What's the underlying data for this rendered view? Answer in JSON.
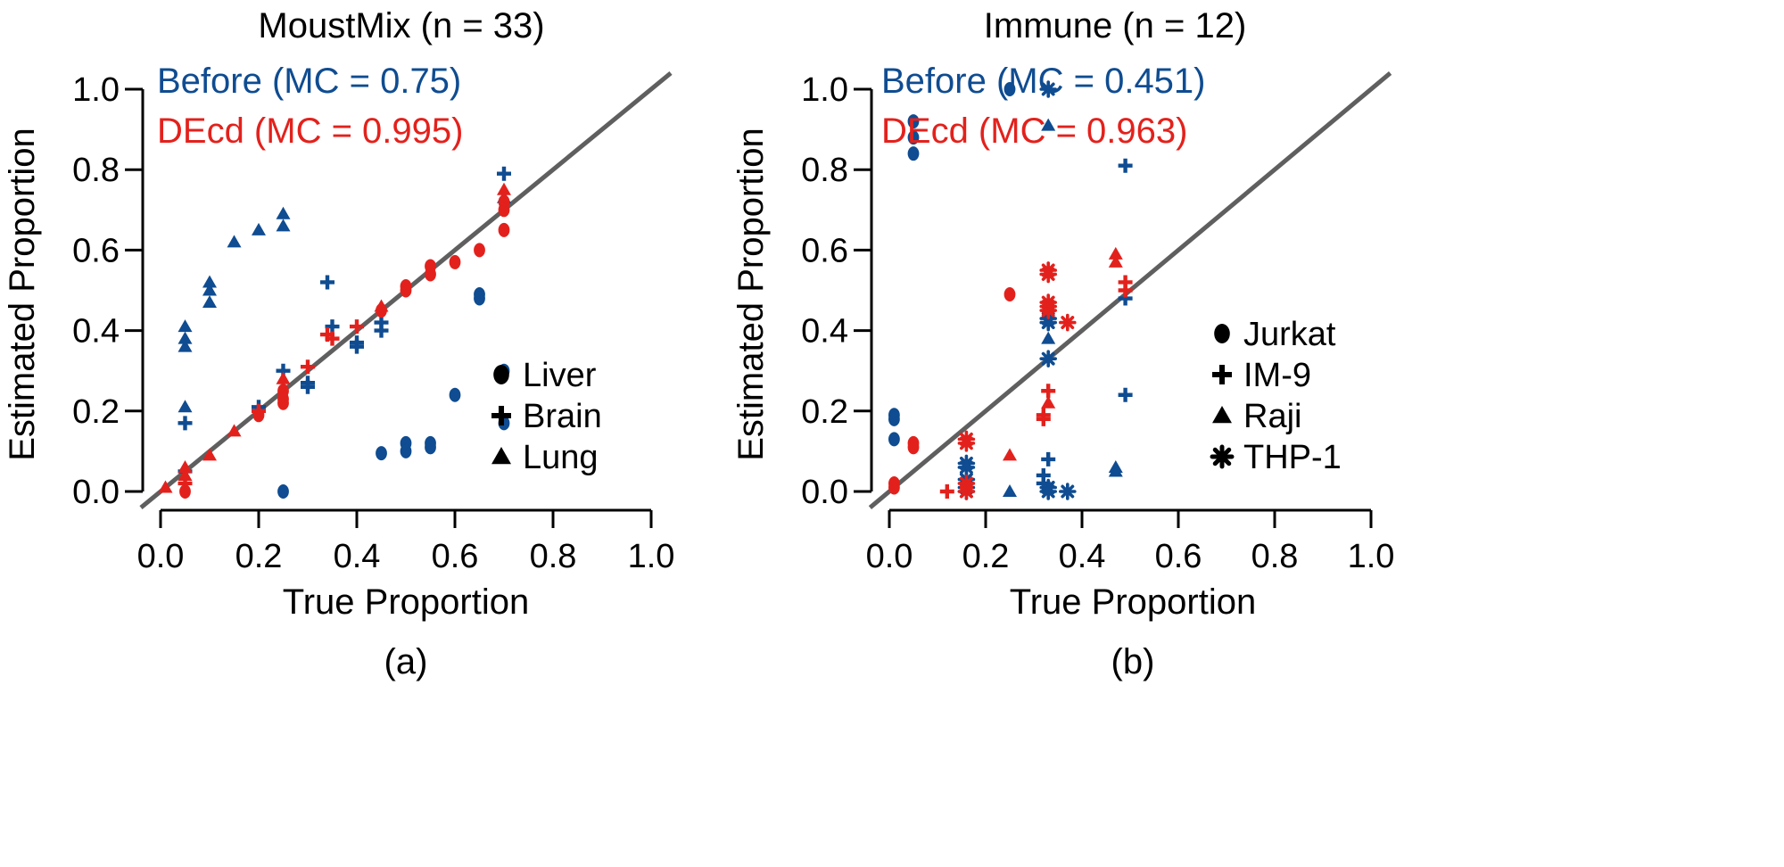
{
  "figure": {
    "colors": {
      "before": "#0f4c91",
      "decd": "#e3211c",
      "diagonal": "#5f5f5f",
      "axis": "#000000"
    },
    "series_labels": {
      "before": "Before",
      "decd": "DEcd"
    }
  },
  "chart_data": [
    {
      "type": "scatter",
      "panel_label": "(a)",
      "title": "MoustMix (n = 33)",
      "xlabel": "True Proportion",
      "ylabel": "Estimated Proportion",
      "xlim": [
        0.0,
        1.0
      ],
      "ylim": [
        0.0,
        1.0
      ],
      "xticks": [
        "0.0",
        "0.2",
        "0.4",
        "0.6",
        "0.8",
        "1.0"
      ],
      "yticks": [
        "0.0",
        "0.2",
        "0.4",
        "0.6",
        "0.8",
        "1.0"
      ],
      "grid": false,
      "reference_line": "y = x",
      "annotations": {
        "before": "Before (MC = 0.75)",
        "decd": "DEcd (MC = 0.995)"
      },
      "legend": {
        "placement": "bottom-right",
        "entries": [
          {
            "label": "Liver",
            "marker": "circle"
          },
          {
            "label": "Brain",
            "marker": "plus"
          },
          {
            "label": "Lung",
            "marker": "triangle"
          }
        ]
      },
      "series": [
        {
          "name": "Before",
          "color_key": "before",
          "points": [
            {
              "x": 0.05,
              "y": 0.41,
              "group": "Lung"
            },
            {
              "x": 0.05,
              "y": 0.38,
              "group": "Lung"
            },
            {
              "x": 0.05,
              "y": 0.36,
              "group": "Lung"
            },
            {
              "x": 0.05,
              "y": 0.21,
              "group": "Lung"
            },
            {
              "x": 0.05,
              "y": 0.17,
              "group": "Brain"
            },
            {
              "x": 0.05,
              "y": 0.05,
              "group": "Brain"
            },
            {
              "x": 0.1,
              "y": 0.52,
              "group": "Lung"
            },
            {
              "x": 0.1,
              "y": 0.5,
              "group": "Lung"
            },
            {
              "x": 0.1,
              "y": 0.47,
              "group": "Lung"
            },
            {
              "x": 0.15,
              "y": 0.62,
              "group": "Lung"
            },
            {
              "x": 0.2,
              "y": 0.65,
              "group": "Lung"
            },
            {
              "x": 0.2,
              "y": 0.21,
              "group": "Brain"
            },
            {
              "x": 0.25,
              "y": 0.69,
              "group": "Lung"
            },
            {
              "x": 0.25,
              "y": 0.66,
              "group": "Lung"
            },
            {
              "x": 0.25,
              "y": 0.3,
              "group": "Brain"
            },
            {
              "x": 0.25,
              "y": 0.0,
              "group": "Liver"
            },
            {
              "x": 0.3,
              "y": 0.27,
              "group": "Brain"
            },
            {
              "x": 0.3,
              "y": 0.26,
              "group": "Brain"
            },
            {
              "x": 0.34,
              "y": 0.52,
              "group": "Brain"
            },
            {
              "x": 0.35,
              "y": 0.41,
              "group": "Brain"
            },
            {
              "x": 0.4,
              "y": 0.37,
              "group": "Brain"
            },
            {
              "x": 0.4,
              "y": 0.36,
              "group": "Brain"
            },
            {
              "x": 0.45,
              "y": 0.42,
              "group": "Brain"
            },
            {
              "x": 0.45,
              "y": 0.4,
              "group": "Brain"
            },
            {
              "x": 0.45,
              "y": 0.095,
              "group": "Liver"
            },
            {
              "x": 0.5,
              "y": 0.12,
              "group": "Liver"
            },
            {
              "x": 0.5,
              "y": 0.1,
              "group": "Liver"
            },
            {
              "x": 0.55,
              "y": 0.12,
              "group": "Liver"
            },
            {
              "x": 0.55,
              "y": 0.11,
              "group": "Liver"
            },
            {
              "x": 0.6,
              "y": 0.24,
              "group": "Liver"
            },
            {
              "x": 0.65,
              "y": 0.49,
              "group": "Liver"
            },
            {
              "x": 0.65,
              "y": 0.48,
              "group": "Liver"
            },
            {
              "x": 0.7,
              "y": 0.79,
              "group": "Brain"
            },
            {
              "x": 0.7,
              "y": 0.73,
              "group": "Lung"
            },
            {
              "x": 0.7,
              "y": 0.3,
              "group": "Liver"
            },
            {
              "x": 0.7,
              "y": 0.17,
              "group": "Liver"
            }
          ]
        },
        {
          "name": "DEcd",
          "color_key": "decd",
          "points": [
            {
              "x": 0.01,
              "y": 0.01,
              "group": "Lung"
            },
            {
              "x": 0.05,
              "y": 0.06,
              "group": "Lung"
            },
            {
              "x": 0.05,
              "y": 0.04,
              "group": "Lung"
            },
            {
              "x": 0.05,
              "y": 0.02,
              "group": "Brain"
            },
            {
              "x": 0.05,
              "y": 0.0,
              "group": "Liver"
            },
            {
              "x": 0.1,
              "y": 0.09,
              "group": "Lung"
            },
            {
              "x": 0.15,
              "y": 0.15,
              "group": "Lung"
            },
            {
              "x": 0.2,
              "y": 0.2,
              "group": "Brain"
            },
            {
              "x": 0.2,
              "y": 0.19,
              "group": "Liver"
            },
            {
              "x": 0.25,
              "y": 0.28,
              "group": "Lung"
            },
            {
              "x": 0.25,
              "y": 0.25,
              "group": "Liver"
            },
            {
              "x": 0.25,
              "y": 0.23,
              "group": "Liver"
            },
            {
              "x": 0.25,
              "y": 0.22,
              "group": "Liver"
            },
            {
              "x": 0.3,
              "y": 0.31,
              "group": "Brain"
            },
            {
              "x": 0.34,
              "y": 0.39,
              "group": "Brain"
            },
            {
              "x": 0.35,
              "y": 0.38,
              "group": "Brain"
            },
            {
              "x": 0.4,
              "y": 0.41,
              "group": "Brain"
            },
            {
              "x": 0.45,
              "y": 0.46,
              "group": "Lung"
            },
            {
              "x": 0.45,
              "y": 0.45,
              "group": "Liver"
            },
            {
              "x": 0.5,
              "y": 0.51,
              "group": "Liver"
            },
            {
              "x": 0.5,
              "y": 0.5,
              "group": "Liver"
            },
            {
              "x": 0.55,
              "y": 0.56,
              "group": "Liver"
            },
            {
              "x": 0.55,
              "y": 0.54,
              "group": "Liver"
            },
            {
              "x": 0.6,
              "y": 0.57,
              "group": "Liver"
            },
            {
              "x": 0.65,
              "y": 0.6,
              "group": "Liver"
            },
            {
              "x": 0.7,
              "y": 0.75,
              "group": "Lung"
            },
            {
              "x": 0.7,
              "y": 0.72,
              "group": "Liver"
            },
            {
              "x": 0.7,
              "y": 0.7,
              "group": "Liver"
            },
            {
              "x": 0.7,
              "y": 0.65,
              "group": "Liver"
            }
          ]
        }
      ]
    },
    {
      "type": "scatter",
      "panel_label": "(b)",
      "title": "Immune (n = 12)",
      "xlabel": "True Proportion",
      "ylabel": "Estimated Proportion",
      "xlim": [
        0.0,
        1.0
      ],
      "ylim": [
        0.0,
        1.0
      ],
      "xticks": [
        "0.0",
        "0.2",
        "0.4",
        "0.6",
        "0.8",
        "1.0"
      ],
      "yticks": [
        "0.0",
        "0.2",
        "0.4",
        "0.6",
        "0.8",
        "1.0"
      ],
      "grid": false,
      "reference_line": "y = x",
      "annotations": {
        "before": "Before (MC = 0.451)",
        "decd": "DEcd (MC = 0.963)"
      },
      "legend": {
        "placement": "bottom-right",
        "entries": [
          {
            "label": "Jurkat",
            "marker": "circle"
          },
          {
            "label": "IM-9",
            "marker": "plus"
          },
          {
            "label": "Raji",
            "marker": "triangle"
          },
          {
            "label": "THP-1",
            "marker": "asterisk"
          }
        ]
      },
      "series": [
        {
          "name": "Before",
          "color_key": "before",
          "points": [
            {
              "x": 0.01,
              "y": 0.19,
              "group": "Jurkat"
            },
            {
              "x": 0.01,
              "y": 0.18,
              "group": "Jurkat"
            },
            {
              "x": 0.01,
              "y": 0.13,
              "group": "Jurkat"
            },
            {
              "x": 0.05,
              "y": 0.92,
              "group": "Jurkat"
            },
            {
              "x": 0.05,
              "y": 0.88,
              "group": "Jurkat"
            },
            {
              "x": 0.05,
              "y": 0.84,
              "group": "Jurkat"
            },
            {
              "x": 0.16,
              "y": 0.07,
              "group": "THP-1"
            },
            {
              "x": 0.16,
              "y": 0.06,
              "group": "THP-1"
            },
            {
              "x": 0.16,
              "y": 0.03,
              "group": "THP-1"
            },
            {
              "x": 0.16,
              "y": 0.01,
              "group": "THP-1"
            },
            {
              "x": 0.16,
              "y": 0.0,
              "group": "THP-1"
            },
            {
              "x": 0.25,
              "y": 1.0,
              "group": "Jurkat"
            },
            {
              "x": 0.25,
              "y": 0.0,
              "group": "Raji"
            },
            {
              "x": 0.32,
              "y": 0.04,
              "group": "IM-9"
            },
            {
              "x": 0.32,
              "y": 0.02,
              "group": "IM-9"
            },
            {
              "x": 0.33,
              "y": 1.0,
              "group": "THP-1"
            },
            {
              "x": 0.33,
              "y": 0.91,
              "group": "Raji"
            },
            {
              "x": 0.33,
              "y": 0.43,
              "group": "THP-1"
            },
            {
              "x": 0.33,
              "y": 0.42,
              "group": "THP-1"
            },
            {
              "x": 0.33,
              "y": 0.38,
              "group": "Raji"
            },
            {
              "x": 0.33,
              "y": 0.33,
              "group": "THP-1"
            },
            {
              "x": 0.33,
              "y": 0.08,
              "group": "IM-9"
            },
            {
              "x": 0.33,
              "y": 0.01,
              "group": "THP-1"
            },
            {
              "x": 0.33,
              "y": 0.0,
              "group": "THP-1"
            },
            {
              "x": 0.37,
              "y": 0.0,
              "group": "THP-1"
            },
            {
              "x": 0.47,
              "y": 0.06,
              "group": "Raji"
            },
            {
              "x": 0.47,
              "y": 0.05,
              "group": "Raji"
            },
            {
              "x": 0.49,
              "y": 0.81,
              "group": "IM-9"
            },
            {
              "x": 0.49,
              "y": 0.48,
              "group": "IM-9"
            },
            {
              "x": 0.49,
              "y": 0.24,
              "group": "IM-9"
            }
          ]
        },
        {
          "name": "DEcd",
          "color_key": "decd",
          "points": [
            {
              "x": 0.01,
              "y": 0.02,
              "group": "Jurkat"
            },
            {
              "x": 0.01,
              "y": 0.01,
              "group": "Jurkat"
            },
            {
              "x": 0.05,
              "y": 0.12,
              "group": "Jurkat"
            },
            {
              "x": 0.05,
              "y": 0.11,
              "group": "Jurkat"
            },
            {
              "x": 0.12,
              "y": 0.0,
              "group": "IM-9"
            },
            {
              "x": 0.16,
              "y": 0.13,
              "group": "THP-1"
            },
            {
              "x": 0.16,
              "y": 0.12,
              "group": "THP-1"
            },
            {
              "x": 0.16,
              "y": 0.02,
              "group": "THP-1"
            },
            {
              "x": 0.16,
              "y": 0.0,
              "group": "THP-1"
            },
            {
              "x": 0.25,
              "y": 0.49,
              "group": "Jurkat"
            },
            {
              "x": 0.25,
              "y": 0.09,
              "group": "Raji"
            },
            {
              "x": 0.32,
              "y": 0.19,
              "group": "IM-9"
            },
            {
              "x": 0.32,
              "y": 0.18,
              "group": "IM-9"
            },
            {
              "x": 0.33,
              "y": 0.55,
              "group": "THP-1"
            },
            {
              "x": 0.33,
              "y": 0.54,
              "group": "THP-1"
            },
            {
              "x": 0.33,
              "y": 0.47,
              "group": "THP-1"
            },
            {
              "x": 0.33,
              "y": 0.46,
              "group": "THP-1"
            },
            {
              "x": 0.33,
              "y": 0.45,
              "group": "THP-1"
            },
            {
              "x": 0.33,
              "y": 0.25,
              "group": "IM-9"
            },
            {
              "x": 0.33,
              "y": 0.22,
              "group": "Raji"
            },
            {
              "x": 0.37,
              "y": 0.42,
              "group": "THP-1"
            },
            {
              "x": 0.47,
              "y": 0.59,
              "group": "Raji"
            },
            {
              "x": 0.47,
              "y": 0.57,
              "group": "Raji"
            },
            {
              "x": 0.49,
              "y": 0.52,
              "group": "IM-9"
            },
            {
              "x": 0.49,
              "y": 0.5,
              "group": "IM-9"
            }
          ]
        }
      ]
    }
  ]
}
